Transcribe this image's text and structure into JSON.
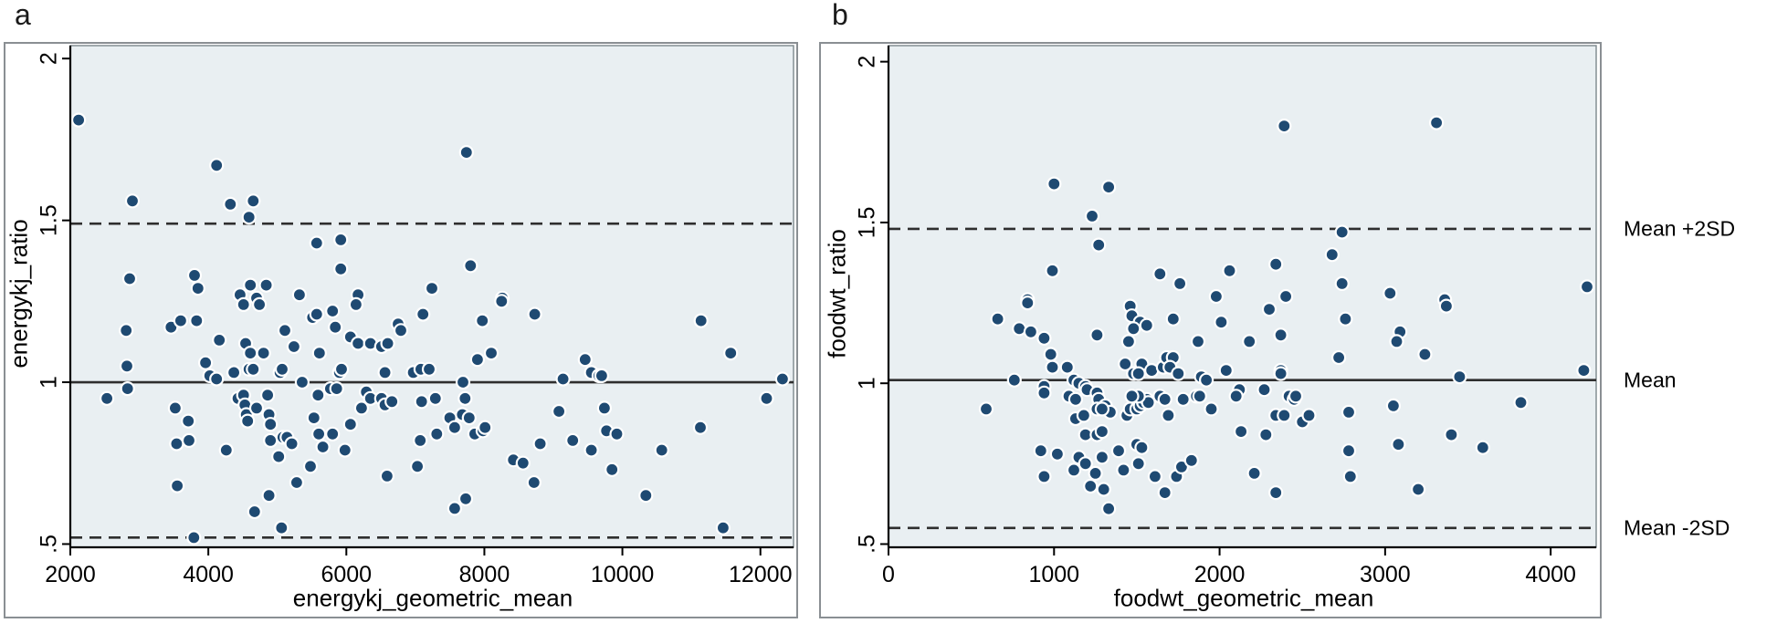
{
  "annotations": [
    {
      "label": "Mean +2SD",
      "value": 1.48
    },
    {
      "label": "Mean",
      "value": 1.01
    },
    {
      "label": "Mean -2SD",
      "value": 0.55
    }
  ],
  "colors": {
    "dot": "#1f4a72",
    "dot_halo": "#ffffff",
    "plot_bg": "#e9eff2",
    "plot_border": "#7c878c",
    "box_border": "#8a8f93",
    "axis": "#000000",
    "ref_line": "#2e2e2e"
  },
  "chart_data": [
    {
      "type": "scatter",
      "panel_letter": "a",
      "xlabel": "energykj_geometric_mean",
      "ylabel": "energykj_ratio",
      "xlim": [
        2000,
        12480
      ],
      "ylim": [
        0.49,
        2.04
      ],
      "x_ticks": [
        2000,
        4000,
        6000,
        8000,
        10000,
        12000
      ],
      "y_ticks": [
        {
          "value": 0.5,
          "label": ".5"
        },
        {
          "value": 1,
          "label": "1"
        },
        {
          "value": 1.5,
          "label": "1.5"
        },
        {
          "value": 2,
          "label": "2"
        }
      ],
      "ref_lines": [
        {
          "name": "Mean +2SD",
          "value": 1.49,
          "style": "dashed"
        },
        {
          "name": "Mean",
          "value": 1.0,
          "style": "solid"
        },
        {
          "name": "Mean -2SD",
          "value": 0.52,
          "style": "dashed"
        }
      ],
      "legend": "none",
      "grid": false,
      "points": [
        [
          2120,
          1.81
        ],
        [
          4120,
          1.67
        ],
        [
          2900,
          1.56
        ],
        [
          4320,
          1.55
        ],
        [
          4650,
          1.56
        ],
        [
          4590,
          1.51
        ],
        [
          5570,
          1.43
        ],
        [
          5920,
          1.44
        ],
        [
          5920,
          1.35
        ],
        [
          2860,
          1.32
        ],
        [
          3800,
          1.33
        ],
        [
          3850,
          1.29
        ],
        [
          4610,
          1.3
        ],
        [
          4840,
          1.3
        ],
        [
          4460,
          1.27
        ],
        [
          4700,
          1.26
        ],
        [
          5320,
          1.27
        ],
        [
          6170,
          1.27
        ],
        [
          7240,
          1.29
        ],
        [
          7740,
          1.71
        ],
        [
          7800,
          1.36
        ],
        [
          8260,
          1.26
        ],
        [
          2810,
          1.16
        ],
        [
          3460,
          1.17
        ],
        [
          3600,
          1.19
        ],
        [
          3830,
          1.19
        ],
        [
          4160,
          1.13
        ],
        [
          4510,
          1.24
        ],
        [
          4740,
          1.24
        ],
        [
          4540,
          1.12
        ],
        [
          4610,
          1.09
        ],
        [
          4800,
          1.09
        ],
        [
          5110,
          1.16
        ],
        [
          5240,
          1.11
        ],
        [
          5510,
          1.2
        ],
        [
          5570,
          1.21
        ],
        [
          5800,
          1.22
        ],
        [
          5840,
          1.17
        ],
        [
          6060,
          1.14
        ],
        [
          6140,
          1.24
        ],
        [
          6170,
          1.12
        ],
        [
          6350,
          1.12
        ],
        [
          6510,
          1.11
        ],
        [
          6600,
          1.12
        ],
        [
          6750,
          1.18
        ],
        [
          6790,
          1.16
        ],
        [
          7110,
          1.21
        ],
        [
          3960,
          1.06
        ],
        [
          2820,
          1.05
        ],
        [
          4020,
          1.02
        ],
        [
          4120,
          1.01
        ],
        [
          4370,
          1.03
        ],
        [
          4590,
          1.04
        ],
        [
          4650,
          1.04
        ],
        [
          5040,
          1.03
        ],
        [
          5070,
          1.04
        ],
        [
          5360,
          1.0
        ],
        [
          5610,
          1.09
        ],
        [
          5900,
          1.03
        ],
        [
          5930,
          1.04
        ],
        [
          6560,
          1.03
        ],
        [
          6970,
          1.03
        ],
        [
          7080,
          1.04
        ],
        [
          7200,
          1.04
        ],
        [
          2530,
          0.95
        ],
        [
          2830,
          0.98
        ],
        [
          3520,
          0.92
        ],
        [
          3710,
          0.88
        ],
        [
          3540,
          0.81
        ],
        [
          3720,
          0.82
        ],
        [
          4260,
          0.79
        ],
        [
          4430,
          0.95
        ],
        [
          4510,
          0.96
        ],
        [
          4530,
          0.93
        ],
        [
          4550,
          0.9
        ],
        [
          4570,
          0.88
        ],
        [
          4700,
          0.92
        ],
        [
          4860,
          0.96
        ],
        [
          4880,
          0.9
        ],
        [
          4900,
          0.87
        ],
        [
          4900,
          0.82
        ],
        [
          5020,
          0.77
        ],
        [
          5080,
          0.83
        ],
        [
          5140,
          0.83
        ],
        [
          5210,
          0.81
        ],
        [
          5280,
          0.69
        ],
        [
          5480,
          0.74
        ],
        [
          5530,
          0.89
        ],
        [
          5590,
          0.96
        ],
        [
          5600,
          0.84
        ],
        [
          5660,
          0.8
        ],
        [
          5770,
          0.98
        ],
        [
          5800,
          0.84
        ],
        [
          5860,
          0.98
        ],
        [
          5980,
          0.79
        ],
        [
          6060,
          0.87
        ],
        [
          6220,
          0.92
        ],
        [
          6290,
          0.97
        ],
        [
          6350,
          0.95
        ],
        [
          6510,
          0.95
        ],
        [
          6560,
          0.93
        ],
        [
          6590,
          0.71
        ],
        [
          6660,
          0.94
        ],
        [
          7030,
          0.74
        ],
        [
          7070,
          0.82
        ],
        [
          3550,
          0.68
        ],
        [
          4880,
          0.65
        ],
        [
          4670,
          0.6
        ],
        [
          5060,
          0.55
        ],
        [
          3790,
          0.52
        ],
        [
          8250,
          1.25
        ],
        [
          8730,
          1.21
        ],
        [
          7970,
          1.19
        ],
        [
          11140,
          1.19
        ],
        [
          7900,
          1.07
        ],
        [
          8100,
          1.09
        ],
        [
          11570,
          1.09
        ],
        [
          9460,
          1.07
        ],
        [
          9550,
          1.03
        ],
        [
          9660,
          1.02
        ],
        [
          9700,
          1.02
        ],
        [
          9140,
          1.01
        ],
        [
          7690,
          1.0
        ],
        [
          7720,
          0.95
        ],
        [
          7290,
          0.95
        ],
        [
          7680,
          0.9
        ],
        [
          7780,
          0.89
        ],
        [
          7500,
          0.89
        ],
        [
          7570,
          0.86
        ],
        [
          7310,
          0.84
        ],
        [
          7860,
          0.84
        ],
        [
          7980,
          0.85
        ],
        [
          8010,
          0.86
        ],
        [
          9080,
          0.91
        ],
        [
          9740,
          0.92
        ],
        [
          9770,
          0.85
        ],
        [
          9920,
          0.84
        ],
        [
          9280,
          0.82
        ],
        [
          8810,
          0.81
        ],
        [
          9550,
          0.79
        ],
        [
          10570,
          0.79
        ],
        [
          11130,
          0.86
        ],
        [
          12090,
          0.95
        ],
        [
          8420,
          0.76
        ],
        [
          8560,
          0.75
        ],
        [
          9850,
          0.73
        ],
        [
          8720,
          0.69
        ],
        [
          10340,
          0.65
        ],
        [
          7730,
          0.64
        ],
        [
          7570,
          0.61
        ],
        [
          11460,
          0.55
        ],
        [
          7090,
          0.94
        ],
        [
          12320,
          1.01
        ]
      ]
    },
    {
      "type": "scatter",
      "panel_letter": "b",
      "xlabel": "foodwt_geometric_mean",
      "ylabel": "foodwt_ratio",
      "xlim": [
        0,
        4275
      ],
      "ylim": [
        0.49,
        2.05
      ],
      "x_ticks": [
        0,
        1000,
        2000,
        3000,
        4000
      ],
      "y_ticks": [
        {
          "value": 0.5,
          "label": ".5"
        },
        {
          "value": 1,
          "label": "1"
        },
        {
          "value": 1.5,
          "label": "1.5"
        },
        {
          "value": 2,
          "label": "2"
        }
      ],
      "ref_lines": [
        {
          "name": "Mean +2SD",
          "value": 1.48,
          "style": "dashed"
        },
        {
          "name": "Mean",
          "value": 1.01,
          "style": "solid"
        },
        {
          "name": "Mean -2SD",
          "value": 0.55,
          "style": "dashed"
        }
      ],
      "legend": "none",
      "grid": false,
      "points": [
        [
          1000,
          1.62
        ],
        [
          1330,
          1.61
        ],
        [
          1230,
          1.52
        ],
        [
          1270,
          1.43
        ],
        [
          990,
          1.35
        ],
        [
          1640,
          1.34
        ],
        [
          1760,
          1.31
        ],
        [
          2060,
          1.35
        ],
        [
          840,
          1.26
        ],
        [
          1980,
          1.27
        ],
        [
          2390,
          1.8
        ],
        [
          3310,
          1.81
        ],
        [
          2740,
          1.47
        ],
        [
          2680,
          1.4
        ],
        [
          2340,
          1.37
        ],
        [
          2740,
          1.31
        ],
        [
          3030,
          1.28
        ],
        [
          4220,
          1.3
        ],
        [
          2400,
          1.27
        ],
        [
          3360,
          1.26
        ],
        [
          840,
          1.25
        ],
        [
          660,
          1.2
        ],
        [
          790,
          1.17
        ],
        [
          860,
          1.16
        ],
        [
          940,
          1.14
        ],
        [
          1460,
          1.24
        ],
        [
          1470,
          1.21
        ],
        [
          1520,
          1.19
        ],
        [
          1560,
          1.18
        ],
        [
          1480,
          1.17
        ],
        [
          1720,
          1.2
        ],
        [
          1260,
          1.15
        ],
        [
          1450,
          1.13
        ],
        [
          1870,
          1.13
        ],
        [
          2010,
          1.19
        ],
        [
          2180,
          1.13
        ],
        [
          980,
          1.09
        ],
        [
          990,
          1.05
        ],
        [
          1080,
          1.05
        ],
        [
          1430,
          1.06
        ],
        [
          1530,
          1.06
        ],
        [
          1590,
          1.04
        ],
        [
          1660,
          1.05
        ],
        [
          1680,
          1.08
        ],
        [
          1720,
          1.08
        ],
        [
          1700,
          1.05
        ],
        [
          1750,
          1.03
        ],
        [
          1480,
          1.03
        ],
        [
          1510,
          1.03
        ],
        [
          760,
          1.01
        ],
        [
          1120,
          1.01
        ],
        [
          1150,
          1.0
        ],
        [
          1890,
          1.02
        ],
        [
          1920,
          1.01
        ],
        [
          2040,
          1.04
        ],
        [
          2120,
          0.98
        ],
        [
          2100,
          0.96
        ],
        [
          940,
          0.99
        ],
        [
          940,
          0.97
        ],
        [
          1190,
          0.99
        ],
        [
          1200,
          0.98
        ],
        [
          1090,
          0.96
        ],
        [
          1130,
          0.95
        ],
        [
          1260,
          0.97
        ],
        [
          1270,
          0.95
        ],
        [
          590,
          0.92
        ],
        [
          1310,
          0.93
        ],
        [
          1340,
          0.91
        ],
        [
          1440,
          0.9
        ],
        [
          1460,
          0.92
        ],
        [
          1500,
          0.92
        ],
        [
          1520,
          0.93
        ],
        [
          1540,
          0.94
        ],
        [
          1560,
          0.95
        ],
        [
          1570,
          0.94
        ],
        [
          1510,
          0.96
        ],
        [
          1470,
          0.96
        ],
        [
          1640,
          0.96
        ],
        [
          1670,
          0.95
        ],
        [
          1690,
          0.9
        ],
        [
          1780,
          0.95
        ],
        [
          1860,
          0.96
        ],
        [
          1880,
          0.96
        ],
        [
          1950,
          0.92
        ],
        [
          1130,
          0.89
        ],
        [
          1180,
          0.9
        ],
        [
          1260,
          0.92
        ],
        [
          1290,
          0.92
        ],
        [
          1190,
          0.84
        ],
        [
          1260,
          0.84
        ],
        [
          1290,
          0.85
        ],
        [
          920,
          0.79
        ],
        [
          1020,
          0.78
        ],
        [
          1150,
          0.77
        ],
        [
          1190,
          0.75
        ],
        [
          1290,
          0.77
        ],
        [
          1390,
          0.79
        ],
        [
          1420,
          0.73
        ],
        [
          1500,
          0.81
        ],
        [
          1530,
          0.8
        ],
        [
          1510,
          0.75
        ],
        [
          1610,
          0.71
        ],
        [
          1670,
          0.66
        ],
        [
          1740,
          0.71
        ],
        [
          1770,
          0.74
        ],
        [
          1830,
          0.76
        ],
        [
          940,
          0.71
        ],
        [
          1120,
          0.73
        ],
        [
          1220,
          0.68
        ],
        [
          1250,
          0.72
        ],
        [
          1300,
          0.67
        ],
        [
          1330,
          0.61
        ],
        [
          2130,
          0.85
        ],
        [
          2300,
          1.23
        ],
        [
          2370,
          1.15
        ],
        [
          2760,
          1.2
        ],
        [
          3370,
          1.24
        ],
        [
          3090,
          1.16
        ],
        [
          3070,
          1.13
        ],
        [
          3240,
          1.09
        ],
        [
          2720,
          1.08
        ],
        [
          2370,
          1.04
        ],
        [
          2370,
          1.03
        ],
        [
          3450,
          1.02
        ],
        [
          4200,
          1.04
        ],
        [
          2270,
          0.98
        ],
        [
          2420,
          0.96
        ],
        [
          2450,
          0.95
        ],
        [
          2460,
          0.96
        ],
        [
          2340,
          0.9
        ],
        [
          2390,
          0.9
        ],
        [
          2500,
          0.88
        ],
        [
          2540,
          0.9
        ],
        [
          2280,
          0.84
        ],
        [
          2780,
          0.91
        ],
        [
          3050,
          0.93
        ],
        [
          3820,
          0.94
        ],
        [
          3400,
          0.84
        ],
        [
          3590,
          0.8
        ],
        [
          3080,
          0.81
        ],
        [
          2780,
          0.79
        ],
        [
          2790,
          0.71
        ],
        [
          2210,
          0.72
        ],
        [
          2340,
          0.66
        ],
        [
          3200,
          0.67
        ]
      ]
    }
  ]
}
